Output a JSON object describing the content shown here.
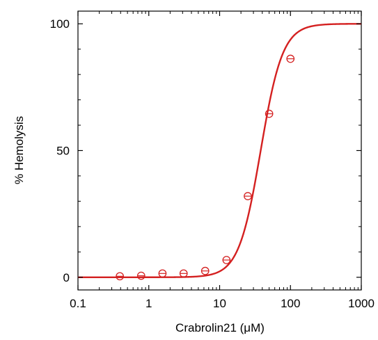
{
  "chart_data": {
    "type": "scatter",
    "title": "",
    "xlabel": "Crabrolin21 (μM)",
    "ylabel": "% Hemolysis",
    "xscale": "log",
    "xlim": [
      0.1,
      1000
    ],
    "ylim": [
      -5,
      105
    ],
    "xticks": [
      {
        "value": 0.1,
        "label": "0.1"
      },
      {
        "value": 1,
        "label": "1"
      },
      {
        "value": 10,
        "label": "10"
      },
      {
        "value": 100,
        "label": "100"
      },
      {
        "value": 1000,
        "label": "1000"
      }
    ],
    "yticks": [
      {
        "value": 0,
        "label": "0"
      },
      {
        "value": 50,
        "label": "50"
      },
      {
        "value": 100,
        "label": "100"
      }
    ],
    "grid": false,
    "legend": "none",
    "color": "#d42020",
    "series": [
      {
        "kind": "points",
        "x": [
          0.39,
          0.78,
          1.56,
          3.1,
          6.25,
          12.5,
          25,
          50,
          100
        ],
        "y": [
          0.4,
          0.6,
          1.5,
          1.5,
          2.5,
          6.8,
          32.0,
          64.5,
          86.2
        ]
      },
      {
        "kind": "fit",
        "model": "hill",
        "top": 100,
        "ec50": 38,
        "hill": 2.8
      }
    ]
  }
}
